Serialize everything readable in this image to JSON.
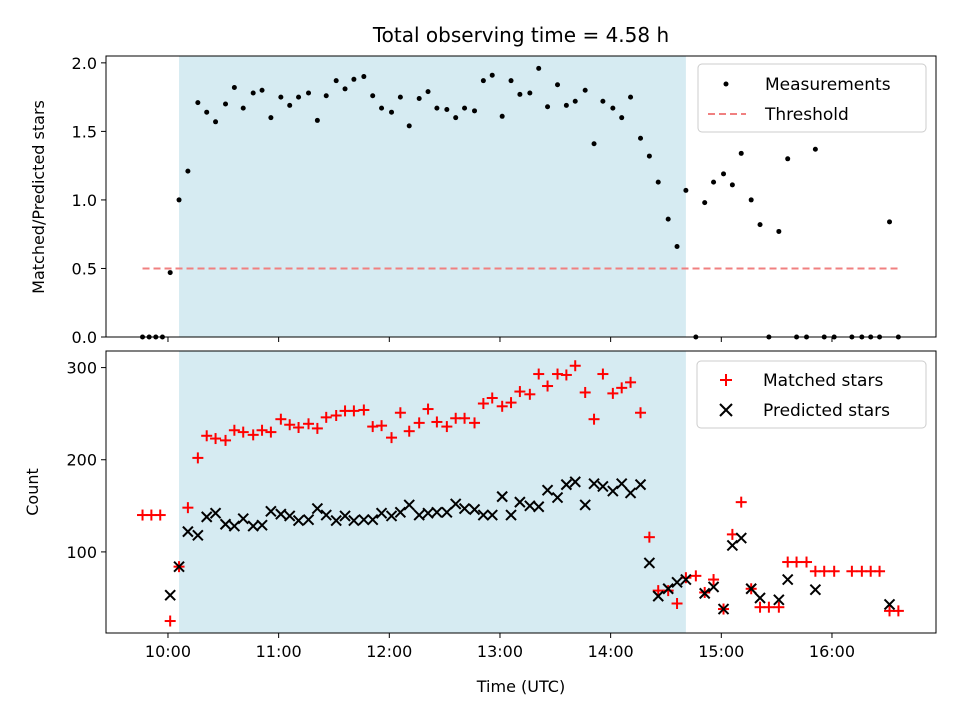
{
  "chart_data": [
    {
      "type": "scatter",
      "title": "Total observing time = 4.58 h",
      "xlabel": "",
      "ylabel": "Matched/Predicted stars",
      "xlim_hours": [
        9.44,
        16.94
      ],
      "ylim": [
        0,
        2.05
      ],
      "yticks": [
        0.0,
        0.5,
        1.0,
        1.5,
        2.0
      ],
      "ytick_labels": [
        "0.0",
        "0.5",
        "1.0",
        "1.5",
        "2.0"
      ],
      "observing_window_hours": [
        10.1,
        14.68
      ],
      "legend_position": "upper-right",
      "threshold": {
        "name": "Threshold",
        "value": 0.5,
        "x_range_hours": [
          9.77,
          16.62
        ],
        "color": "#f08080"
      },
      "series": [
        {
          "name": "Measurements",
          "marker": "dot",
          "color": "#000000",
          "x": [
            9.77,
            9.83,
            9.89,
            9.95,
            10.02,
            10.1,
            10.18,
            10.27,
            10.35,
            10.43,
            10.52,
            10.6,
            10.68,
            10.77,
            10.85,
            10.93,
            11.02,
            11.1,
            11.18,
            11.27,
            11.35,
            11.43,
            11.52,
            11.6,
            11.68,
            11.77,
            11.85,
            11.93,
            12.02,
            12.1,
            12.18,
            12.27,
            12.35,
            12.43,
            12.52,
            12.6,
            12.68,
            12.77,
            12.85,
            12.93,
            13.02,
            13.1,
            13.18,
            13.27,
            13.35,
            13.43,
            13.52,
            13.6,
            13.68,
            13.77,
            13.85,
            13.93,
            14.02,
            14.1,
            14.18,
            14.27,
            14.35,
            14.43,
            14.52,
            14.6,
            14.68,
            14.77,
            14.85,
            14.93,
            15.02,
            15.1,
            15.18,
            15.27,
            15.35,
            15.43,
            15.52,
            15.6,
            15.68,
            15.77,
            15.85,
            15.93,
            16.02,
            16.18,
            16.27,
            16.35,
            16.43,
            16.52,
            16.6
          ],
          "y": [
            0,
            0,
            0,
            0,
            0.47,
            1.0,
            1.21,
            1.71,
            1.64,
            1.57,
            1.7,
            1.82,
            1.67,
            1.78,
            1.8,
            1.6,
            1.75,
            1.69,
            1.75,
            1.78,
            1.58,
            1.76,
            1.87,
            1.81,
            1.88,
            1.9,
            1.76,
            1.67,
            1.64,
            1.75,
            1.54,
            1.74,
            1.79,
            1.67,
            1.66,
            1.6,
            1.67,
            1.65,
            1.87,
            1.91,
            1.61,
            1.87,
            1.77,
            1.78,
            1.96,
            1.68,
            1.84,
            1.69,
            1.72,
            1.8,
            1.41,
            1.72,
            1.67,
            1.6,
            1.75,
            1.45,
            1.32,
            1.13,
            0.86,
            0.66,
            1.07,
            0,
            0.98,
            1.13,
            1.19,
            1.11,
            1.34,
            1.0,
            0.82,
            0,
            0.77,
            1.3,
            0,
            0,
            1.37,
            0,
            0,
            0,
            0,
            0,
            0,
            0.84,
            0
          ]
        }
      ]
    },
    {
      "type": "scatter",
      "title": "",
      "xlabel": "Time (UTC)",
      "ylabel": "Count",
      "xlim_hours": [
        9.44,
        16.94
      ],
      "ylim": [
        12,
        318
      ],
      "yticks": [
        100,
        200,
        300
      ],
      "ytick_labels": [
        "100",
        "200",
        "300"
      ],
      "xticks_hours": [
        10,
        11,
        12,
        13,
        14,
        15,
        16
      ],
      "xtick_labels": [
        "10:00",
        "11:00",
        "12:00",
        "13:00",
        "14:00",
        "15:00",
        "16:00"
      ],
      "observing_window_hours": [
        10.1,
        14.68
      ],
      "legend_position": "upper-right",
      "series": [
        {
          "name": "Matched stars",
          "marker": "plus",
          "color": "#ff0000",
          "x": [
            9.77,
            9.85,
            9.93,
            10.02,
            10.1,
            10.18,
            10.27,
            10.35,
            10.43,
            10.52,
            10.6,
            10.68,
            10.77,
            10.85,
            10.93,
            11.02,
            11.1,
            11.18,
            11.27,
            11.35,
            11.43,
            11.52,
            11.6,
            11.68,
            11.77,
            11.85,
            11.93,
            12.02,
            12.1,
            12.18,
            12.27,
            12.35,
            12.43,
            12.52,
            12.6,
            12.68,
            12.77,
            12.85,
            12.93,
            13.02,
            13.1,
            13.18,
            13.27,
            13.35,
            13.43,
            13.52,
            13.6,
            13.68,
            13.77,
            13.85,
            13.93,
            14.02,
            14.1,
            14.18,
            14.27,
            14.35,
            14.43,
            14.52,
            14.6,
            14.68,
            14.77,
            14.85,
            14.93,
            15.02,
            15.1,
            15.18,
            15.27,
            15.35,
            15.43,
            15.52,
            15.6,
            15.68,
            15.77,
            15.85,
            15.93,
            16.02,
            16.18,
            16.27,
            16.35,
            16.43,
            16.52,
            16.6
          ],
          "y": [
            140,
            140,
            140,
            25,
            84,
            148,
            202,
            226,
            223,
            221,
            232,
            230,
            227,
            232,
            230,
            244,
            238,
            235,
            239,
            234,
            246,
            248,
            253,
            253,
            254,
            236,
            237,
            224,
            251,
            231,
            240,
            255,
            241,
            236,
            245,
            245,
            240,
            261,
            267,
            258,
            262,
            274,
            271,
            293,
            280,
            293,
            292,
            302,
            273,
            244,
            293,
            272,
            278,
            284,
            251,
            116,
            58,
            58,
            44,
            72,
            74,
            56,
            70,
            38,
            119,
            154,
            60,
            40,
            40,
            40,
            89,
            89,
            89,
            79,
            79,
            79,
            79,
            79,
            79,
            79,
            36,
            36
          ]
        },
        {
          "name": "Predicted stars",
          "marker": "x",
          "color": "#000000",
          "x": [
            10.02,
            10.1,
            10.18,
            10.27,
            10.35,
            10.43,
            10.52,
            10.6,
            10.68,
            10.77,
            10.85,
            10.93,
            11.02,
            11.1,
            11.18,
            11.27,
            11.35,
            11.43,
            11.52,
            11.6,
            11.68,
            11.77,
            11.85,
            11.93,
            12.02,
            12.1,
            12.18,
            12.27,
            12.35,
            12.43,
            12.52,
            12.6,
            12.68,
            12.77,
            12.85,
            12.93,
            13.02,
            13.1,
            13.18,
            13.27,
            13.35,
            13.43,
            13.52,
            13.6,
            13.68,
            13.77,
            13.85,
            13.93,
            14.02,
            14.1,
            14.18,
            14.27,
            14.35,
            14.43,
            14.52,
            14.6,
            14.68,
            14.85,
            14.93,
            15.02,
            15.1,
            15.18,
            15.27,
            15.35,
            15.52,
            15.6,
            15.85,
            16.52
          ],
          "y": [
            53,
            84,
            122,
            118,
            138,
            142,
            130,
            128,
            136,
            128,
            129,
            144,
            141,
            139,
            134,
            135,
            147,
            140,
            134,
            139,
            134,
            135,
            135,
            142,
            139,
            143,
            151,
            140,
            142,
            143,
            143,
            152,
            147,
            146,
            140,
            140,
            160,
            140,
            154,
            150,
            149,
            167,
            159,
            173,
            176,
            151,
            174,
            171,
            166,
            174,
            164,
            173,
            88,
            52,
            60,
            67,
            70,
            55,
            62,
            38,
            107,
            115,
            60,
            50,
            48,
            70,
            59,
            43
          ]
        }
      ]
    }
  ]
}
